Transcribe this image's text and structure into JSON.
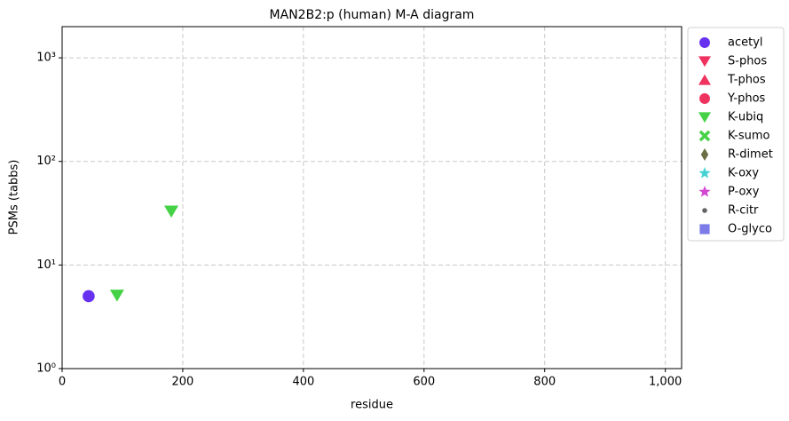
{
  "chart_data": {
    "type": "scatter",
    "title": "MAN2B2:p (human) M-A diagram",
    "x_label": "residue",
    "y_label": "PSMs (tabbs)",
    "xlim": [
      0,
      1027
    ],
    "ylim": [
      1,
      2000
    ],
    "y_scale": "log",
    "grid": true,
    "legend_position": "outside right",
    "xticks": [
      0,
      200,
      400,
      600,
      800,
      {
        "value": 1000,
        "label": "1,000"
      }
    ],
    "yticks": [
      {
        "value": 1,
        "label": "10⁰"
      },
      {
        "value": 10,
        "label": "10¹"
      },
      {
        "value": 100,
        "label": "10²"
      },
      {
        "value": 1000,
        "label": "10³"
      }
    ],
    "series": [
      {
        "name": "acetyl",
        "color": "#6632f0",
        "marker": "circle",
        "x": [
          44
        ],
        "y": [
          5
        ]
      },
      {
        "name": "S-phos",
        "color": "#f0325f",
        "marker": "triangle-down",
        "x": [],
        "y": []
      },
      {
        "name": "T-phos",
        "color": "#f0325f",
        "marker": "triangle-up",
        "x": [],
        "y": []
      },
      {
        "name": "Y-phos",
        "color": "#f0325f",
        "marker": "circle",
        "x": [],
        "y": []
      },
      {
        "name": "K-ubiq",
        "color": "#46d246",
        "marker": "triangle-down",
        "x": [
          91,
          181
        ],
        "y": [
          5.1,
          33
        ]
      },
      {
        "name": "K-sumo",
        "color": "#46d246",
        "marker": "x",
        "x": [],
        "y": []
      },
      {
        "name": "R-dimet",
        "color": "#6e6e46",
        "marker": "diamond",
        "x": [],
        "y": []
      },
      {
        "name": "K-oxy",
        "color": "#46d2d2",
        "marker": "star",
        "x": [],
        "y": []
      },
      {
        "name": "P-oxy",
        "color": "#d246d2",
        "marker": "star",
        "x": [],
        "y": []
      },
      {
        "name": "R-citr",
        "color": "#646464",
        "marker": "point",
        "x": [],
        "y": []
      },
      {
        "name": "O-glyco",
        "color": "#6e6ee6",
        "marker": "square",
        "x": [],
        "y": []
      }
    ]
  }
}
